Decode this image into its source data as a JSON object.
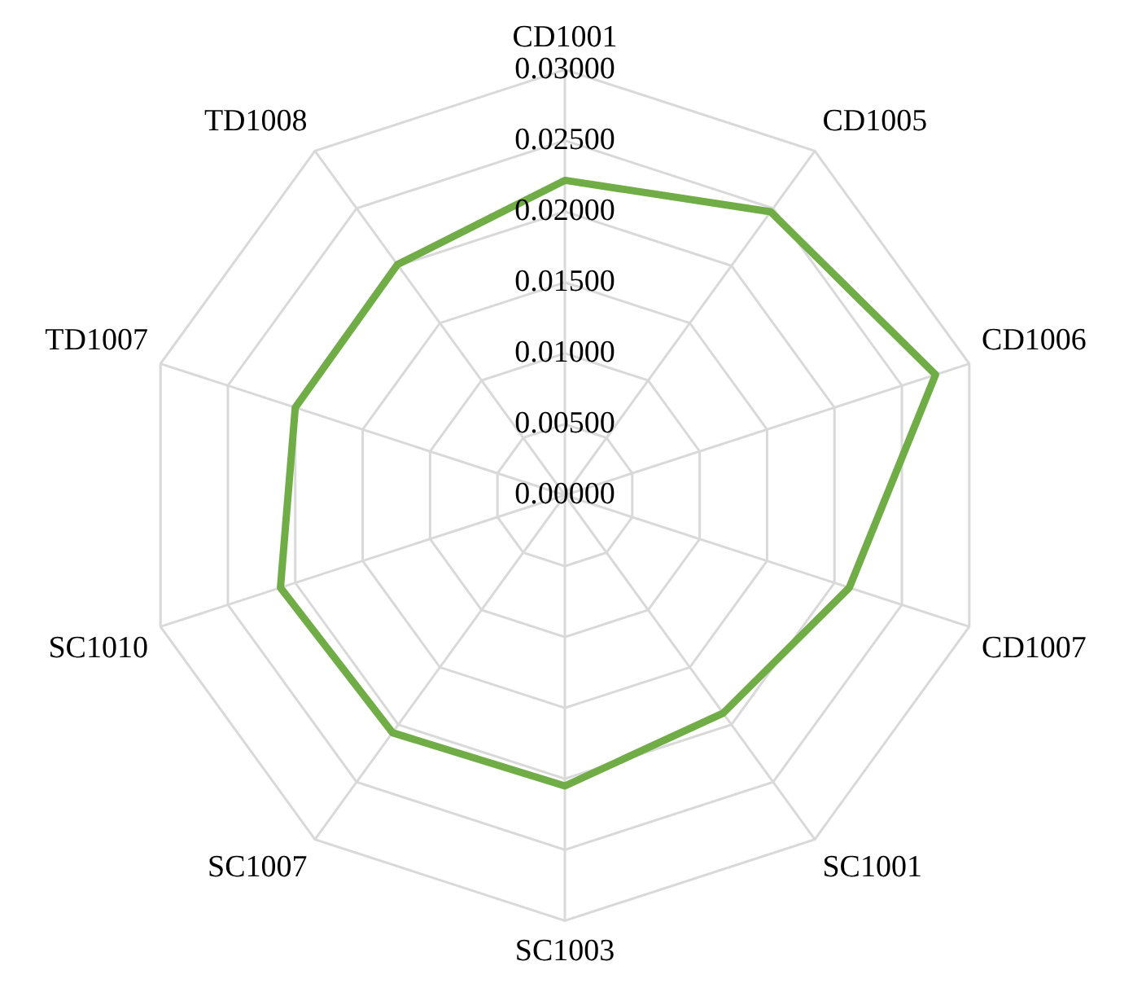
{
  "chart_data": {
    "type": "radar",
    "categories": [
      "CD1001",
      "CD1005",
      "CD1006",
      "CD1007",
      "SC1001",
      "SC1003",
      "SC1007",
      "SC1010",
      "TD1007",
      "TD1008"
    ],
    "series": [
      {
        "color": "#70ad47",
        "values": [
          0.0222,
          0.0247,
          0.0275,
          0.0211,
          0.019,
          0.0205,
          0.0207,
          0.0211,
          0.02,
          0.0201
        ]
      }
    ],
    "ylim": [
      0,
      0.03
    ],
    "yticks": [
      {
        "value": 0,
        "label": "0.00000"
      },
      {
        "value": 0.005,
        "label": "0.00500"
      },
      {
        "value": 0.01,
        "label": "0.01000"
      },
      {
        "value": 0.015,
        "label": "0.01500"
      },
      {
        "value": 0.02,
        "label": "0.02000"
      },
      {
        "value": 0.025,
        "label": "0.02500"
      },
      {
        "value": 0.03,
        "label": "0.03000"
      }
    ],
    "grid": true,
    "legend": false,
    "marker": "none",
    "line_style": "solid"
  }
}
